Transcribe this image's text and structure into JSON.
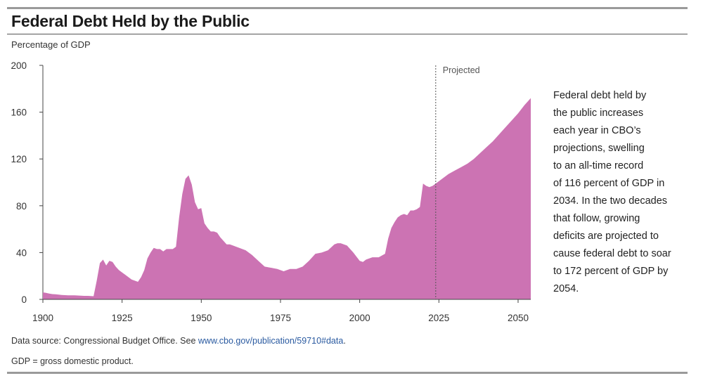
{
  "header": {
    "title": "Federal Debt Held by the Public",
    "y_axis_label": "Percentage of GDP"
  },
  "caption_lines": [
    "Federal debt held by",
    "the public increases",
    "each year in CBO’s",
    "projections, swelling",
    "to an all-time record",
    "of 116 percent of GDP in",
    "2034. In the two decades",
    "that follow, growing",
    "deficits are projected to",
    "cause federal debt to soar",
    "to 172 percent of GDP by",
    "2054."
  ],
  "footer": {
    "source_prefix": "Data source: Congressional Budget Office. See ",
    "source_link": "www.cbo.gov/publication/59710#data",
    "source_suffix": ".",
    "note": "GDP = gross domestic product."
  },
  "colors": {
    "area": "#cc73b3",
    "axis": "#444444",
    "projection_line": "#555555"
  },
  "chart_data": {
    "type": "area",
    "title": "Federal Debt Held by the Public",
    "xlabel": "",
    "ylabel": "Percentage of GDP",
    "xlim": [
      1900,
      2054
    ],
    "ylim": [
      0,
      200
    ],
    "x_ticks": [
      1900,
      1925,
      1950,
      1975,
      2000,
      2025,
      2050
    ],
    "y_ticks": [
      0,
      40,
      80,
      120,
      160,
      200
    ],
    "projection": {
      "start_year": 2024,
      "label": "Projected"
    },
    "series": [
      {
        "name": "Federal debt held by the public",
        "x": [
          1900,
          1901,
          1902,
          1903,
          1904,
          1905,
          1906,
          1907,
          1908,
          1909,
          1910,
          1911,
          1912,
          1913,
          1914,
          1915,
          1916,
          1917,
          1918,
          1919,
          1920,
          1921,
          1922,
          1923,
          1924,
          1925,
          1926,
          1927,
          1928,
          1929,
          1930,
          1931,
          1932,
          1933,
          1934,
          1935,
          1936,
          1937,
          1938,
          1939,
          1940,
          1941,
          1942,
          1943,
          1944,
          1945,
          1946,
          1947,
          1948,
          1949,
          1950,
          1951,
          1952,
          1953,
          1954,
          1955,
          1956,
          1957,
          1958,
          1959,
          1960,
          1962,
          1964,
          1966,
          1968,
          1970,
          1972,
          1974,
          1976,
          1978,
          1980,
          1982,
          1984,
          1986,
          1988,
          1990,
          1992,
          1993,
          1994,
          1996,
          1998,
          2000,
          2001,
          2002,
          2004,
          2006,
          2008,
          2009,
          2010,
          2011,
          2012,
          2013,
          2014,
          2015,
          2016,
          2017,
          2018,
          2019,
          2020,
          2021,
          2022,
          2023,
          2024,
          2026,
          2028,
          2030,
          2032,
          2034,
          2036,
          2038,
          2040,
          2042,
          2044,
          2046,
          2048,
          2050,
          2052,
          2054
        ],
        "values": [
          6,
          5.5,
          5,
          4.5,
          4.3,
          4,
          3.8,
          3.6,
          3.5,
          3.5,
          3.5,
          3.3,
          3.1,
          3,
          3,
          2.9,
          2.7,
          16,
          31,
          34,
          29,
          33,
          32,
          28,
          25,
          23,
          21,
          19,
          17,
          16,
          15,
          19,
          25,
          35,
          40,
          44,
          43,
          43,
          41,
          43,
          43,
          43,
          45,
          70,
          90,
          103,
          106,
          98,
          83,
          77,
          78,
          65,
          61,
          58,
          58,
          57,
          53,
          50,
          47,
          47,
          46,
          44,
          42,
          38,
          33,
          28,
          27,
          26,
          24,
          26,
          26,
          28,
          33,
          39,
          40,
          42,
          47,
          48,
          48,
          46,
          40,
          33,
          32,
          34,
          36,
          36,
          39,
          52,
          61,
          66,
          70,
          72,
          73,
          72,
          76,
          76,
          77,
          79,
          99,
          97,
          96,
          97,
          99,
          103,
          107,
          110,
          113,
          116,
          120,
          125,
          130,
          135,
          141,
          147,
          153,
          159,
          166,
          172
        ]
      }
    ]
  }
}
